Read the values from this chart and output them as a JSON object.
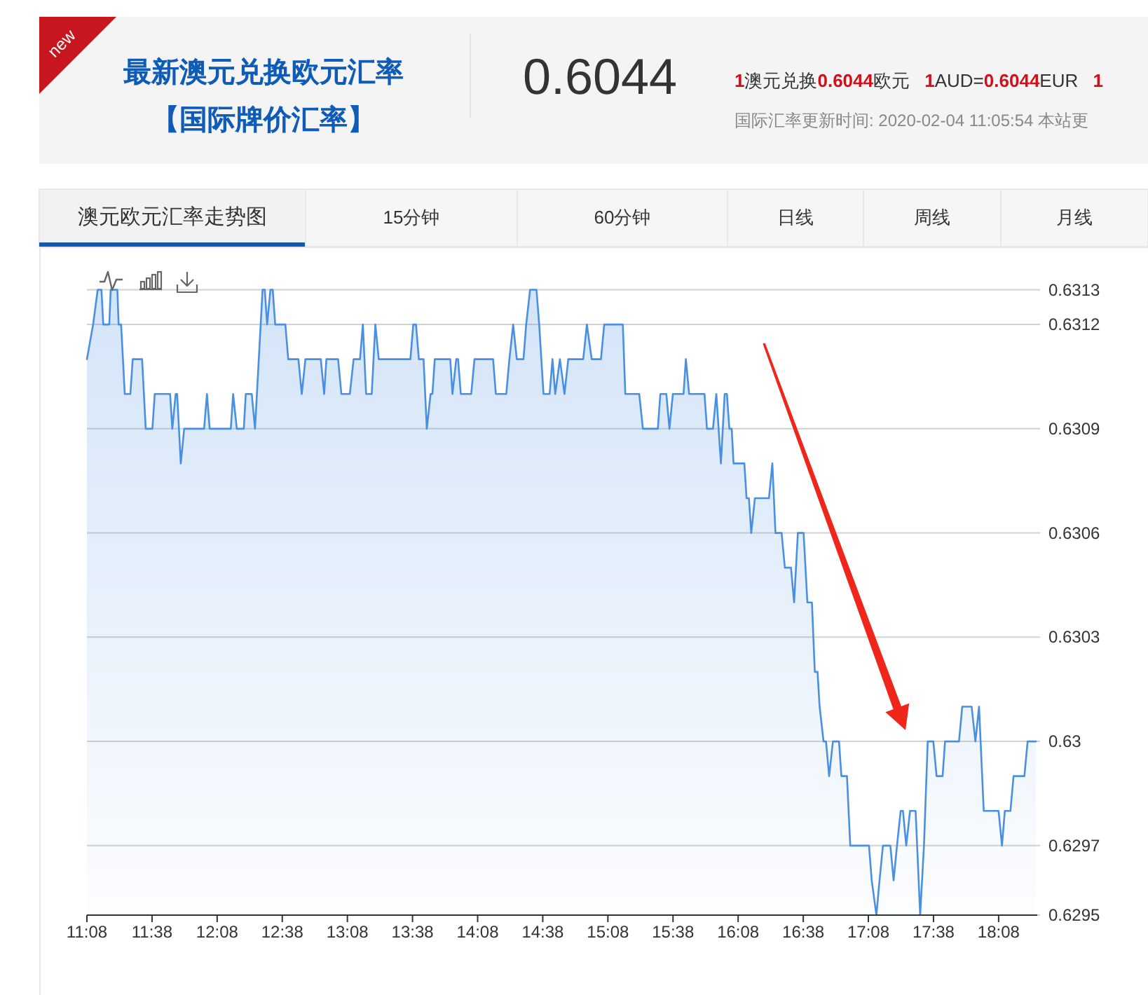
{
  "chart_data": {
    "type": "area",
    "title": "最新澳元兑换欧元汇率",
    "subtitle": "【国际牌价汇率】",
    "annotations": [
      "new",
      "0.6044",
      "1澳元兑换0.6044欧元 1AUD=0.6044EUR 1",
      "国际汇率更新时间: 2020-02-04 11:05:54 本站更",
      "澳元欧元汇率走势图",
      "15分钟",
      "60分钟",
      "日线",
      "周线",
      "月线"
    ],
    "color": "#4a90e2",
    "x": [
      11.1333,
      11.181,
      11.216,
      11.245,
      11.259,
      11.305,
      11.316,
      11.367,
      11.377,
      11.396,
      11.424,
      11.467,
      11.485,
      11.557,
      11.585,
      11.636,
      11.654,
      11.772,
      11.789,
      11.815,
      11.826,
      11.854,
      11.88,
      12.033,
      12.055,
      12.076,
      12.238,
      12.256,
      12.284,
      12.338,
      12.353,
      12.399,
      12.424,
      12.453,
      12.482,
      12.499,
      12.517,
      12.542,
      12.56,
      12.579,
      12.657,
      12.679,
      12.757,
      12.783,
      12.811,
      12.929,
      12.955,
      12.972,
      13.062,
      13.087,
      13.152,
      13.181,
      13.23,
      13.252,
      13.277,
      13.32,
      13.348,
      13.374,
      13.617,
      13.639,
      13.66,
      13.682,
      13.718,
      13.743,
      13.772,
      13.786,
      13.804,
      13.923,
      13.94,
      13.969,
      13.983,
      14.004,
      14.084,
      14.109,
      14.252,
      14.273,
      14.353,
      14.377,
      14.406,
      14.434,
      14.485,
      14.506,
      14.536,
      14.585,
      14.606,
      14.639,
      14.686,
      14.708,
      14.729,
      14.765,
      14.8,
      14.829,
      14.944,
      14.972,
      15.009,
      15.08,
      15.105,
      15.248,
      15.267,
      15.374,
      15.402,
      15.517,
      15.536,
      15.582,
      15.606,
      15.632,
      15.714,
      15.732,
      15.757,
      15.875,
      15.894,
      15.94,
      15.966,
      16.001,
      16.03,
      16.047,
      16.066,
      16.084,
      16.098,
      16.181,
      16.198,
      16.216,
      16.234,
      16.262,
      16.37,
      16.396,
      16.42,
      16.467,
      16.492,
      16.539,
      16.563,
      16.592,
      16.636,
      16.665,
      16.7,
      16.722,
      16.743,
      16.759,
      16.789,
      16.808,
      16.832,
      16.861,
      16.908,
      16.926,
      16.969,
      16.994,
      17.138,
      17.159,
      17.195,
      17.219,
      17.245,
      17.302,
      17.327,
      17.353,
      17.381,
      17.399,
      17.424,
      17.453,
      17.496,
      17.531,
      17.56,
      17.589,
      17.632,
      17.657,
      17.703,
      17.722,
      17.829,
      17.854,
      17.926,
      17.955,
      17.983,
      18.019,
      18.133,
      18.159,
      18.181,
      18.224,
      18.248,
      18.331,
      18.356,
      18.42
    ],
    "values": [
      0.6311,
      0.6312,
      0.6313,
      0.6313,
      0.6312,
      0.6312,
      0.6313,
      0.6313,
      0.6312,
      0.6312,
      0.631,
      0.631,
      0.6311,
      0.6311,
      0.6309,
      0.6309,
      0.631,
      0.631,
      0.6309,
      0.631,
      0.631,
      0.6308,
      0.6309,
      0.6309,
      0.631,
      0.6309,
      0.6309,
      0.631,
      0.6309,
      0.6309,
      0.631,
      0.631,
      0.6309,
      0.6311,
      0.6313,
      0.6313,
      0.6312,
      0.6313,
      0.6313,
      0.6312,
      0.6312,
      0.6311,
      0.6311,
      0.631,
      0.6311,
      0.6311,
      0.631,
      0.6311,
      0.6311,
      0.631,
      0.631,
      0.6311,
      0.6311,
      0.6312,
      0.631,
      0.631,
      0.6312,
      0.6311,
      0.6311,
      0.6312,
      0.6312,
      0.6311,
      0.6311,
      0.6309,
      0.631,
      0.631,
      0.6311,
      0.6311,
      0.631,
      0.6311,
      0.6311,
      0.631,
      0.631,
      0.6311,
      0.6311,
      0.631,
      0.631,
      0.6311,
      0.6312,
      0.6311,
      0.6311,
      0.6312,
      0.6313,
      0.6313,
      0.6312,
      0.631,
      0.631,
      0.6311,
      0.631,
      0.6311,
      0.631,
      0.6311,
      0.6311,
      0.6312,
      0.6311,
      0.6311,
      0.6312,
      0.6312,
      0.631,
      0.631,
      0.6309,
      0.6309,
      0.631,
      0.631,
      0.6309,
      0.631,
      0.631,
      0.6311,
      0.631,
      0.631,
      0.6309,
      0.6309,
      0.631,
      0.6308,
      0.631,
      0.631,
      0.6309,
      0.6309,
      0.6308,
      0.6308,
      0.6307,
      0.6307,
      0.6306,
      0.6307,
      0.6307,
      0.6308,
      0.6306,
      0.6306,
      0.6305,
      0.6305,
      0.6304,
      0.6306,
      0.6306,
      0.6304,
      0.6304,
      0.6302,
      0.6302,
      0.6301,
      0.63,
      0.63,
      0.6299,
      0.63,
      0.63,
      0.6299,
      0.6299,
      0.6297,
      0.6297,
      0.6296,
      0.6295,
      0.6296,
      0.6297,
      0.6297,
      0.6296,
      0.6297,
      0.6298,
      0.6298,
      0.6297,
      0.6298,
      0.6298,
      0.6295,
      0.6297,
      0.63,
      0.63,
      0.6299,
      0.6299,
      0.63,
      0.63,
      0.6301,
      0.6301,
      0.63,
      0.6301,
      0.6298,
      0.6298,
      0.6297,
      0.6298,
      0.6298,
      0.6299,
      0.6299,
      0.63,
      0.63
    ],
    "xlim": [
      11.1333,
      18.43
    ],
    "xticks": [
      {
        "value": 11.1333,
        "label": "11:08"
      },
      {
        "value": 11.6333,
        "label": "11:38"
      },
      {
        "value": 12.1333,
        "label": "12:08"
      },
      {
        "value": 12.6333,
        "label": "12:38"
      },
      {
        "value": 13.1333,
        "label": "13:08"
      },
      {
        "value": 13.6333,
        "label": "13:38"
      },
      {
        "value": 14.1333,
        "label": "14:08"
      },
      {
        "value": 14.6333,
        "label": "14:38"
      },
      {
        "value": 15.1333,
        "label": "15:08"
      },
      {
        "value": 15.6333,
        "label": "15:38"
      },
      {
        "value": 16.1333,
        "label": "16:08"
      },
      {
        "value": 16.6333,
        "label": "16:38"
      },
      {
        "value": 17.1333,
        "label": "17:08"
      },
      {
        "value": 17.6333,
        "label": "17:38"
      },
      {
        "value": 18.1333,
        "label": "18:08"
      }
    ],
    "ylim": [
      0.6295,
      0.63142
    ],
    "yticks": [
      0.6295,
      0.6297,
      0.63,
      0.6303,
      0.6306,
      0.6309,
      0.6312,
      0.6313
    ],
    "grid": "y"
  }
}
